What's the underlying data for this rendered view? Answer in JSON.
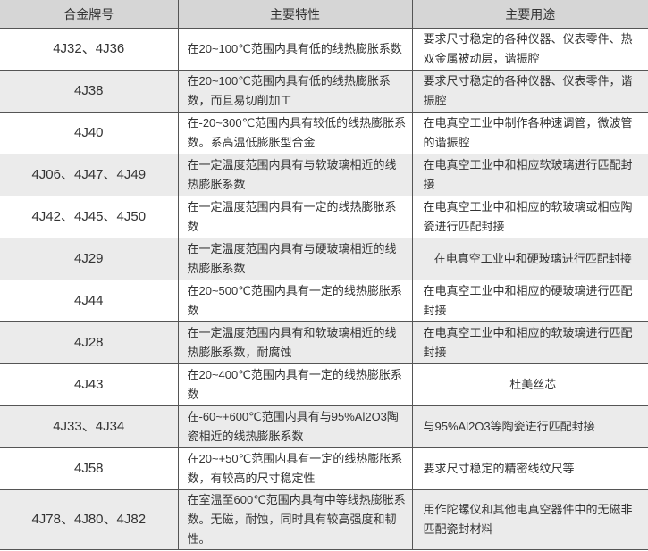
{
  "headers": [
    "合金牌号",
    "主要特性",
    "主要用途"
  ],
  "rows": [
    {
      "grade": "4J32、4J36",
      "property": "在20~100℃范围内具有低的线热膨胀系数",
      "use": "要求尺寸稳定的各种仪器、仪表零件、热双金属被动层，谐振腔"
    },
    {
      "grade": "4J38",
      "property": "在20~100℃范围内具有低的线热膨胀系数，而且易切削加工",
      "use": "要求尺寸稳定的各种仪器、仪表零件，谐振腔"
    },
    {
      "grade": "4J40",
      "property": "在-20~300℃范围内具有较低的线热膨胀系数。系高温低膨胀型合金",
      "use": "在电真空工业中制作各种速调管，微波管的谐振腔"
    },
    {
      "grade": "4J06、4J47、4J49",
      "property": "在一定温度范围内具有与软玻璃相近的线热膨胀系数",
      "use": "在电真空工业中和相应软玻璃进行匹配封接"
    },
    {
      "grade": "4J42、4J45、4J50",
      "property": "在一定温度范围内具有一定的线热膨胀系数",
      "use": "在电真空工业中和相应的软玻璃或相应陶瓷进行匹配封接"
    },
    {
      "grade": "4J29",
      "property": "在一定温度范围内具有与硬玻璃相近的线热膨胀系数",
      "use": "在电真空工业中和硬玻璃进行匹配封接"
    },
    {
      "grade": "4J44",
      "property": "在20~500℃范围内具有一定的线热膨胀系数",
      "use": "在电真空工业中和相应的硬玻璃进行匹配封接"
    },
    {
      "grade": "4J28",
      "property": "在一定温度范围内具有和软玻璃相近的线热膨胀系数，耐腐蚀",
      "use": "在电真空工业中和相应的软玻璃进行匹配封接"
    },
    {
      "grade": "4J43",
      "property": "在20~400℃范围内具有一定的线热膨胀系数",
      "use": "杜美丝芯"
    },
    {
      "grade": "4J33、4J34",
      "property": "在-60~+600℃范围内具有与95%Al2O3陶瓷相近的线热膨胀系数",
      "use": "与95%Al2O3等陶瓷进行匹配封接"
    },
    {
      "grade": "4J58",
      "property": "在20~+50℃范围内具有一定的线热膨胀系数，有较高的尺寸稳定性",
      "use": "要求尺寸稳定的精密线纹尺等"
    },
    {
      "grade": "4J78、4J80、4J82",
      "property": "在室温至600℃范围内具有中等线热膨胀系数。无磁，耐蚀，同时具有较高强度和韧性。",
      "use": "用作陀螺仪和其他电真空器件中的无磁非匹配瓷封材料"
    }
  ]
}
